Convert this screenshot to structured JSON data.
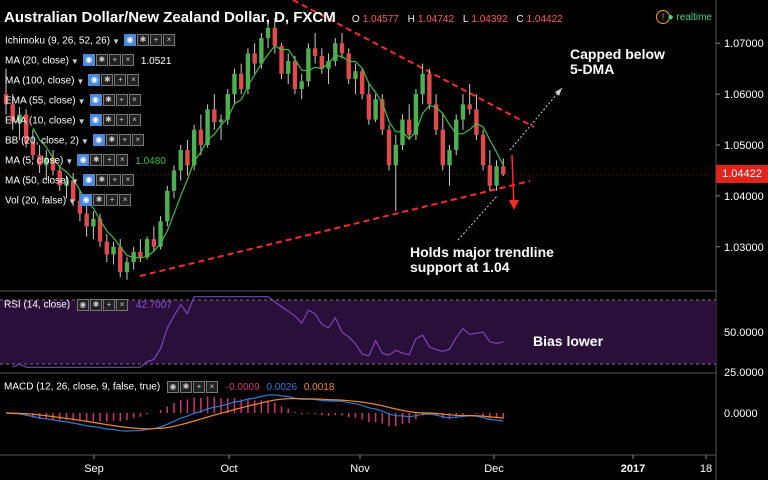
{
  "header": {
    "title": "Australian Dollar/New Zealand Dollar, D, FXCM",
    "open_label": "O",
    "open": "1.04577",
    "high_label": "H",
    "high": "1.04742",
    "low_label": "L",
    "low": "1.04392",
    "close_label": "C",
    "close": "1.04422",
    "realtime": "realtime"
  },
  "indicators": [
    {
      "label": "Ichimoku (9, 26, 52, 26)",
      "value": ""
    },
    {
      "label": "MA (20, close)",
      "value": "1.0521"
    },
    {
      "label": "MA (100, close)",
      "value": ""
    },
    {
      "label": "EMA (55, close)",
      "value": ""
    },
    {
      "label": "EMA (10, close)",
      "value": ""
    },
    {
      "label": "BB (20, close, 2)",
      "value": ""
    },
    {
      "label": "MA (5, close)",
      "value": "1.0480"
    },
    {
      "label": "MA (50, close)",
      "value": ""
    },
    {
      "label": "Vol (20, false)",
      "value": ""
    }
  ],
  "annotations": {
    "capped": "Capped below\n5-DMA",
    "holds": "Holds major trendline\nsupport at 1.04",
    "bias": "Bias lower"
  },
  "rsi_pane": {
    "label": "RSI (14, close)",
    "value": "42.7007"
  },
  "macd_pane": {
    "label": "MACD (12, 26, close, 9, false, true)",
    "v1": "-0.0009",
    "v2": "0.0026",
    "v3": "0.0018"
  },
  "current_price": "1.04422",
  "colors": {
    "up": "#4caf50",
    "down": "#e04a4a",
    "ma": "#3fbf3f",
    "trend": "#ff2a2a",
    "rsi": "#8a4fd1",
    "rsi_band": "#2a0f3a",
    "macd": "#2f7ad6",
    "signal": "#f08a24",
    "hist_pos": "#d0337a",
    "hist_neg": "#d0337a"
  },
  "chart_data": {
    "type": "candlestick",
    "x_ticks": [
      "Sep",
      "Oct",
      "Nov",
      "Dec",
      "2017",
      "18"
    ],
    "y_ticks": [
      "1.07000",
      "1.06000",
      "1.05000",
      "1.04000",
      "1.03000"
    ],
    "ylim": [
      1.0215,
      1.0785
    ],
    "candles": [
      [
        1.06,
        1.065,
        1.056,
        1.058
      ],
      [
        1.058,
        1.06,
        1.053,
        1.0545
      ],
      [
        1.0545,
        1.0575,
        1.051,
        1.056
      ],
      [
        1.056,
        1.057,
        1.0495,
        1.0505
      ],
      [
        1.0505,
        1.053,
        1.047,
        1.048
      ],
      [
        1.048,
        1.05,
        1.0445,
        1.046
      ],
      [
        1.046,
        1.049,
        1.043,
        1.0475
      ],
      [
        1.0475,
        1.049,
        1.044,
        1.045
      ],
      [
        1.045,
        1.046,
        1.041,
        1.042
      ],
      [
        1.042,
        1.044,
        1.0395,
        1.043
      ],
      [
        1.043,
        1.0445,
        1.038,
        1.039
      ],
      [
        1.039,
        1.041,
        1.035,
        1.0365
      ],
      [
        1.0365,
        1.038,
        1.032,
        1.034
      ],
      [
        1.034,
        1.037,
        1.0315,
        1.0355
      ],
      [
        1.0355,
        1.0365,
        1.03,
        1.031
      ],
      [
        1.031,
        1.0325,
        1.027,
        1.0285
      ],
      [
        1.0285,
        1.031,
        1.0265,
        1.03
      ],
      [
        1.03,
        1.0315,
        1.024,
        1.025
      ],
      [
        1.025,
        1.028,
        1.0235,
        1.027
      ],
      [
        1.027,
        1.03,
        1.0255,
        1.029
      ],
      [
        1.029,
        1.0315,
        1.027,
        1.028
      ],
      [
        1.028,
        1.032,
        1.0275,
        1.0315
      ],
      [
        1.0315,
        1.034,
        1.029,
        1.03
      ],
      [
        1.03,
        1.036,
        1.0295,
        1.035
      ],
      [
        1.035,
        1.042,
        1.034,
        1.041
      ],
      [
        1.041,
        1.046,
        1.0395,
        1.045
      ],
      [
        1.045,
        1.05,
        1.043,
        1.049
      ],
      [
        1.049,
        1.051,
        1.044,
        1.046
      ],
      [
        1.046,
        1.054,
        1.045,
        1.053
      ],
      [
        1.053,
        1.056,
        1.048,
        1.05
      ],
      [
        1.05,
        1.058,
        1.0495,
        1.057
      ],
      [
        1.057,
        1.06,
        1.053,
        1.0545
      ],
      [
        1.0545,
        1.056,
        1.051,
        1.055
      ],
      [
        1.055,
        1.061,
        1.054,
        1.06
      ],
      [
        1.06,
        1.065,
        1.058,
        1.064
      ],
      [
        1.064,
        1.066,
        1.06,
        1.061
      ],
      [
        1.061,
        1.069,
        1.06,
        1.068
      ],
      [
        1.068,
        1.07,
        1.064,
        1.066
      ],
      [
        1.066,
        1.072,
        1.065,
        1.071
      ],
      [
        1.071,
        1.074,
        1.069,
        1.073
      ],
      [
        1.073,
        1.075,
        1.068,
        1.0695
      ],
      [
        1.0695,
        1.07,
        1.063,
        1.064
      ],
      [
        1.064,
        1.068,
        1.062,
        1.0665
      ],
      [
        1.0665,
        1.0675,
        1.06,
        1.061
      ],
      [
        1.061,
        1.064,
        1.059,
        1.0625
      ],
      [
        1.0625,
        1.07,
        1.0615,
        1.069
      ],
      [
        1.069,
        1.072,
        1.066,
        1.0675
      ],
      [
        1.0675,
        1.069,
        1.064,
        1.065
      ],
      [
        1.065,
        1.068,
        1.062,
        1.0665
      ],
      [
        1.0665,
        1.071,
        1.0655,
        1.07
      ],
      [
        1.07,
        1.072,
        1.067,
        1.068
      ],
      [
        1.068,
        1.069,
        1.062,
        1.063
      ],
      [
        1.063,
        1.066,
        1.06,
        1.0645
      ],
      [
        1.0645,
        1.065,
        1.059,
        1.06
      ],
      [
        1.06,
        1.062,
        1.054,
        1.055
      ],
      [
        1.055,
        1.06,
        1.0545,
        1.059
      ],
      [
        1.059,
        1.06,
        1.052,
        1.053
      ],
      [
        1.053,
        1.054,
        1.045,
        1.046
      ],
      [
        1.046,
        1.052,
        1.037,
        1.05
      ],
      [
        1.05,
        1.056,
        1.049,
        1.055
      ],
      [
        1.055,
        1.058,
        1.051,
        1.052
      ],
      [
        1.052,
        1.061,
        1.051,
        1.06
      ],
      [
        1.06,
        1.066,
        1.058,
        1.064
      ],
      [
        1.064,
        1.065,
        1.057,
        1.058
      ],
      [
        1.058,
        1.06,
        1.052,
        1.053
      ],
      [
        1.053,
        1.056,
        1.045,
        1.046
      ],
      [
        1.046,
        1.05,
        1.042,
        1.049
      ],
      [
        1.049,
        1.056,
        1.048,
        1.055
      ],
      [
        1.055,
        1.06,
        1.053,
        1.058
      ],
      [
        1.058,
        1.062,
        1.056,
        1.057
      ],
      [
        1.057,
        1.06,
        1.051,
        1.052
      ],
      [
        1.052,
        1.053,
        1.045,
        1.046
      ],
      [
        1.046,
        1.049,
        1.041,
        1.042
      ],
      [
        1.042,
        1.047,
        1.041,
        1.0458
      ],
      [
        1.0458,
        1.0474,
        1.0439,
        1.0442
      ]
    ],
    "rsi": {
      "ylim": [
        25,
        75
      ],
      "ticks": [
        "50.0000",
        "25.0000"
      ]
    },
    "macd": {
      "ticks": [
        "0.0000"
      ]
    }
  }
}
